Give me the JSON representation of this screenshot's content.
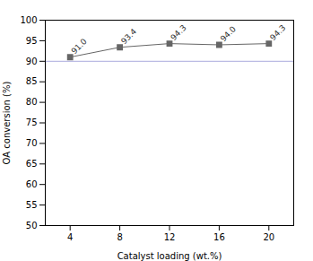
{
  "chart_data": {
    "type": "line",
    "x": [
      4,
      8,
      12,
      16,
      20
    ],
    "values": [
      91.0,
      93.4,
      94.3,
      94.0,
      94.3
    ],
    "value_labels": [
      "91.0",
      "93.4",
      "94.3",
      "94.0",
      "94.3"
    ],
    "data_labels": true,
    "xlabel": "Catalyst loading (wt.%)",
    "ylabel": "OA conversion (%)",
    "xlim": [
      2,
      22
    ],
    "ylim": [
      50,
      100
    ],
    "xticks": [
      4,
      8,
      12,
      16,
      20
    ],
    "yticks": [
      50,
      55,
      60,
      65,
      70,
      75,
      80,
      85,
      90,
      95,
      100
    ],
    "color": "#666666",
    "marker": "square",
    "grid": false,
    "hline": {
      "y": 90,
      "color": "#aaaadd"
    }
  }
}
